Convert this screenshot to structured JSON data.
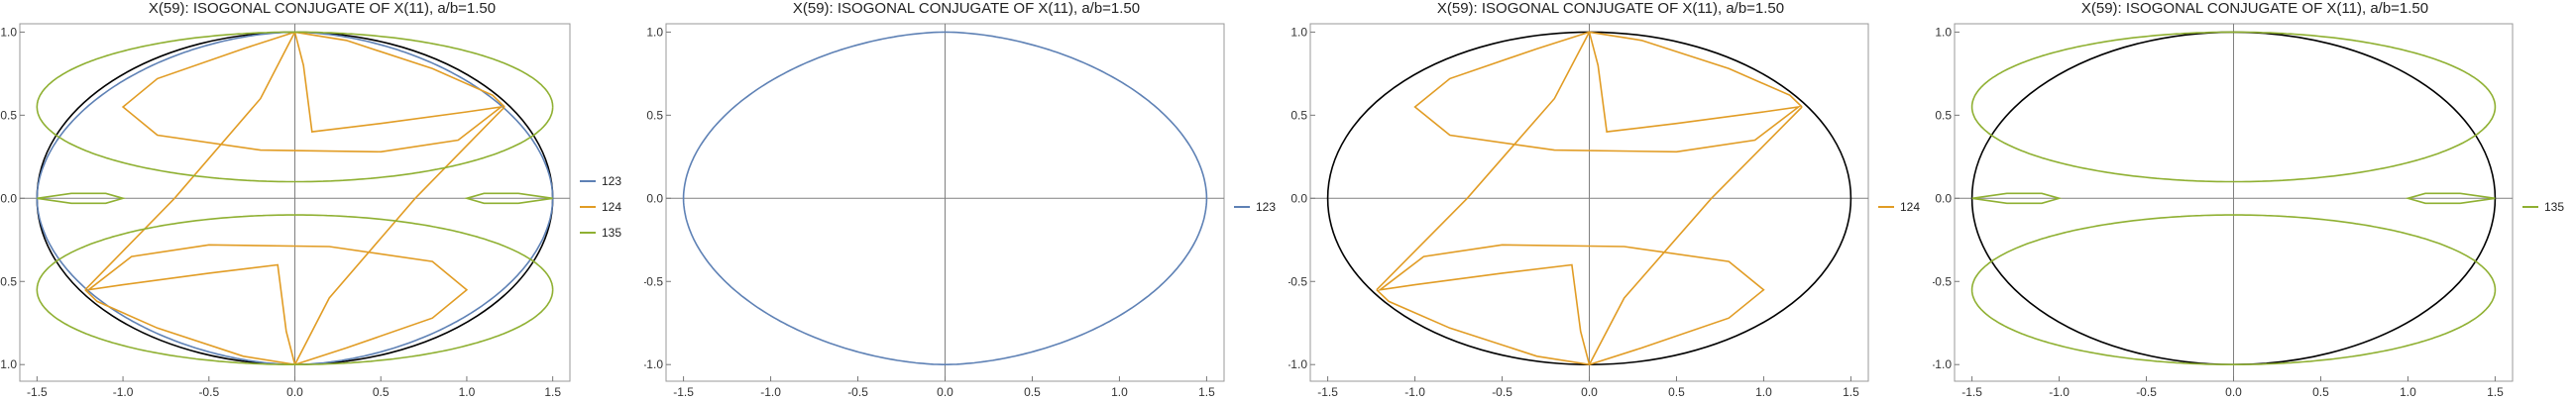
{
  "colors": {
    "s123": "#5e81b5",
    "s124": "#e19c24",
    "s135": "#8fb032",
    "ellipse": "#000000",
    "axis": "#808080"
  },
  "chart_data": [
    {
      "type": "line",
      "title": "X(59): ISOGONAL CONJUGATE OF X(11), a/b=1.50",
      "xlim": [
        -1.6,
        1.6
      ],
      "ylim": [
        -1.1,
        1.05
      ],
      "xticks": [
        "-1.5",
        "-1.0",
        "-0.5",
        "0.0",
        "0.5",
        "1.0",
        "1.5"
      ],
      "yticks": [
        "-1.0",
        "-0.5",
        "0.0",
        "0.5",
        "1.0"
      ],
      "ellipse": {
        "a": 1.5,
        "b": 1.0
      },
      "legend_position": "right",
      "series": [
        {
          "name": "123",
          "color": "#5e81b5",
          "kind": "s123"
        },
        {
          "name": "124",
          "color": "#e19c24",
          "kind": "s124"
        },
        {
          "name": "135",
          "color": "#8fb032",
          "kind": "s135"
        }
      ]
    },
    {
      "type": "line",
      "title": "X(59): ISOGONAL CONJUGATE OF X(11), a/b=1.50",
      "xlim": [
        -1.6,
        1.6
      ],
      "ylim": [
        -1.1,
        1.05
      ],
      "xticks": [
        "-1.5",
        "-1.0",
        "-0.5",
        "0.0",
        "0.5",
        "1.0",
        "1.5"
      ],
      "yticks": [
        "-1.0",
        "-0.5",
        "0.0",
        "0.5",
        "1.0"
      ],
      "ellipse": null,
      "legend_position": "right",
      "series": [
        {
          "name": "123",
          "color": "#5e81b5",
          "kind": "s123"
        }
      ]
    },
    {
      "type": "line",
      "title": "X(59): ISOGONAL CONJUGATE OF X(11), a/b=1.50",
      "xlim": [
        -1.6,
        1.6
      ],
      "ylim": [
        -1.1,
        1.05
      ],
      "xticks": [
        "-1.5",
        "-1.0",
        "-0.5",
        "0.0",
        "0.5",
        "1.0",
        "1.5"
      ],
      "yticks": [
        "-1.0",
        "-0.5",
        "0.0",
        "0.5",
        "1.0"
      ],
      "ellipse": {
        "a": 1.5,
        "b": 1.0
      },
      "legend_position": "right",
      "series": [
        {
          "name": "124",
          "color": "#e19c24",
          "kind": "s124"
        }
      ]
    },
    {
      "type": "line",
      "title": "X(59): ISOGONAL CONJUGATE OF X(11), a/b=1.50",
      "xlim": [
        -1.6,
        1.6
      ],
      "ylim": [
        -1.1,
        1.05
      ],
      "xticks": [
        "-1.5",
        "-1.0",
        "-0.5",
        "0.0",
        "0.5",
        "1.0",
        "1.5"
      ],
      "yticks": [
        "-1.0",
        "-0.5",
        "0.0",
        "0.5",
        "1.0"
      ],
      "ellipse": {
        "a": 1.5,
        "b": 1.0
      },
      "legend_position": "right",
      "series": [
        {
          "name": "135",
          "color": "#8fb032",
          "kind": "s135"
        }
      ]
    }
  ]
}
